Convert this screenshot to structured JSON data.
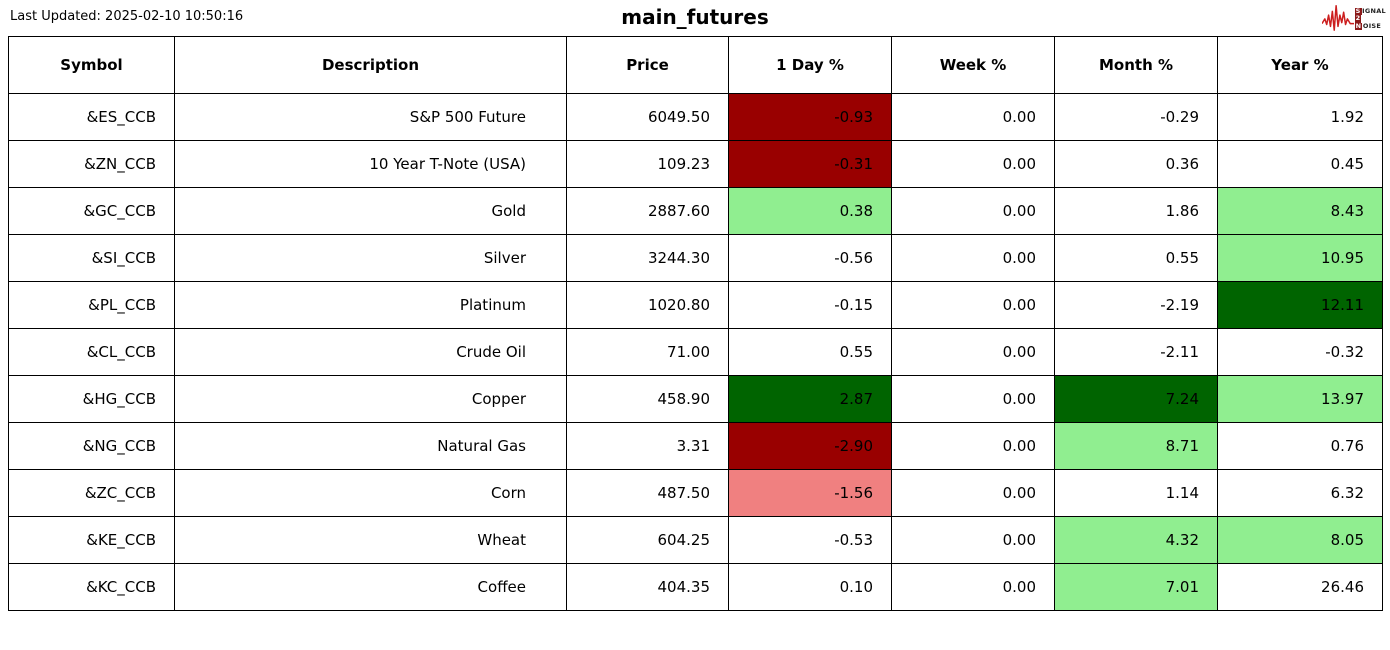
{
  "header": {
    "last_updated": "Last Updated: 2025-02-10 10:50:16",
    "title": "main_futures",
    "logo": {
      "line1_box": "S",
      "line1_rest": "IGNAL",
      "line2_box": "2",
      "line3_box": "N",
      "line3_rest": "OISE"
    }
  },
  "colors": {
    "dark_red": "#990000",
    "light_red": "#f08080",
    "light_green": "#90ee90",
    "dark_green": "#006400",
    "logo_red": "#cc1f1f"
  },
  "chart_data": {
    "type": "table",
    "title": "main_futures",
    "columns": [
      "Symbol",
      "Description",
      "Price",
      "1 Day %",
      "Week %",
      "Month %",
      "Year %"
    ],
    "rows": [
      {
        "symbol": "&ES_CCB",
        "description": "S&P 500 Future",
        "price": "6049.50",
        "day": "-0.93",
        "week": "0.00",
        "month": "-0.29",
        "year": "1.92",
        "hl": {
          "day": "dark_red"
        }
      },
      {
        "symbol": "&ZN_CCB",
        "description": "10 Year T-Note (USA)",
        "price": "109.23",
        "day": "-0.31",
        "week": "0.00",
        "month": "0.36",
        "year": "0.45",
        "hl": {
          "day": "dark_red"
        }
      },
      {
        "symbol": "&GC_CCB",
        "description": "Gold",
        "price": "2887.60",
        "day": "0.38",
        "week": "0.00",
        "month": "1.86",
        "year": "8.43",
        "hl": {
          "day": "light_green",
          "year": "light_green"
        }
      },
      {
        "symbol": "&SI_CCB",
        "description": "Silver",
        "price": "3244.30",
        "day": "-0.56",
        "week": "0.00",
        "month": "0.55",
        "year": "10.95",
        "hl": {
          "year": "light_green"
        }
      },
      {
        "symbol": "&PL_CCB",
        "description": "Platinum",
        "price": "1020.80",
        "day": "-0.15",
        "week": "0.00",
        "month": "-2.19",
        "year": "12.11",
        "hl": {
          "year": "dark_green"
        }
      },
      {
        "symbol": "&CL_CCB",
        "description": "Crude Oil",
        "price": "71.00",
        "day": "0.55",
        "week": "0.00",
        "month": "-2.11",
        "year": "-0.32",
        "hl": {}
      },
      {
        "symbol": "&HG_CCB",
        "description": "Copper",
        "price": "458.90",
        "day": "2.87",
        "week": "0.00",
        "month": "7.24",
        "year": "13.97",
        "hl": {
          "day": "dark_green",
          "month": "dark_green",
          "year": "light_green"
        }
      },
      {
        "symbol": "&NG_CCB",
        "description": "Natural Gas",
        "price": "3.31",
        "day": "-2.90",
        "week": "0.00",
        "month": "8.71",
        "year": "0.76",
        "hl": {
          "day": "dark_red",
          "month": "light_green"
        }
      },
      {
        "symbol": "&ZC_CCB",
        "description": "Corn",
        "price": "487.50",
        "day": "-1.56",
        "week": "0.00",
        "month": "1.14",
        "year": "6.32",
        "hl": {
          "day": "light_red"
        }
      },
      {
        "symbol": "&KE_CCB",
        "description": "Wheat",
        "price": "604.25",
        "day": "-0.53",
        "week": "0.00",
        "month": "4.32",
        "year": "8.05",
        "hl": {
          "month": "light_green",
          "year": "light_green"
        }
      },
      {
        "symbol": "&KC_CCB",
        "description": "Coffee",
        "price": "404.35",
        "day": "0.10",
        "week": "0.00",
        "month": "7.01",
        "year": "26.46",
        "hl": {
          "month": "light_green"
        }
      }
    ]
  }
}
